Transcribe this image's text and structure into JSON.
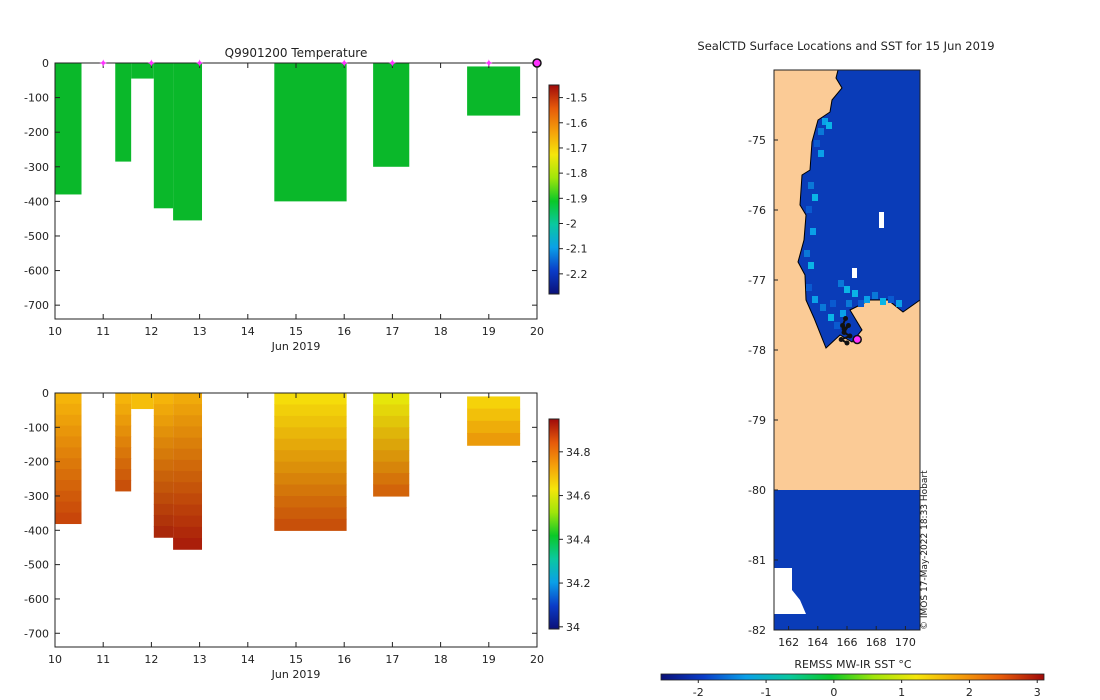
{
  "colors": {
    "temp_fill": "#0ab82a",
    "land": "#fbcb96",
    "ocean": "#0a3cb8",
    "track": "#111111",
    "marker": "#ff33ff",
    "axis": "#222222"
  },
  "chart_data": [
    {
      "type": "bar",
      "name": "temperature-section",
      "title": "Q9901200  Temperature",
      "xlabel": "Jun 2019",
      "xlim": [
        10,
        20
      ],
      "ylim": [
        -740,
        0
      ],
      "x_ticks": [
        10,
        11,
        12,
        13,
        14,
        15,
        16,
        17,
        18,
        19,
        20
      ],
      "y_ticks": [
        0,
        -100,
        -200,
        -300,
        -400,
        -500,
        -600,
        -700
      ],
      "profiles": [
        {
          "x0": 10.0,
          "x1": 10.55,
          "depth": -380
        },
        {
          "x0": 11.25,
          "x1": 11.58,
          "depth": -285
        },
        {
          "x0": 11.58,
          "x1": 12.05,
          "top": -45,
          "depth": 0
        },
        {
          "x0": 12.05,
          "x1": 12.45,
          "depth": -420
        },
        {
          "x0": 12.45,
          "x1": 13.05,
          "depth": -455
        },
        {
          "x0": 14.55,
          "x1": 16.05,
          "depth": -400
        },
        {
          "x0": 16.6,
          "x1": 17.35,
          "depth": -300
        },
        {
          "x0": 18.55,
          "x1": 19.65,
          "top": -10,
          "depth": -152
        }
      ],
      "markers_x": [
        11,
        12,
        13,
        16,
        17,
        19
      ],
      "end_marker_x": 20,
      "colorbar": {
        "ticks": [
          "-1.5",
          "-1.6",
          "-1.7",
          "-1.8",
          "-1.9",
          "-2",
          "-2.1",
          "-2.2"
        ],
        "range": [
          -2.28,
          -1.45
        ],
        "colors": [
          "#0a1078",
          "#0a3cc8",
          "#0aa0e8",
          "#0ac8a0",
          "#0ac828",
          "#a0e60a",
          "#f5e60a",
          "#f5a00a",
          "#e65a0a",
          "#a00a0a"
        ]
      }
    },
    {
      "type": "bar",
      "name": "salinity-section",
      "title": "",
      "xlabel": "Jun 2019",
      "xlim": [
        10,
        20
      ],
      "ylim": [
        -740,
        0
      ],
      "x_ticks": [
        10,
        11,
        12,
        13,
        14,
        15,
        16,
        17,
        18,
        19,
        20
      ],
      "y_ticks": [
        0,
        -100,
        -200,
        -300,
        -400,
        -500,
        -600,
        -700
      ],
      "profiles": [
        {
          "x0": 10.0,
          "x1": 10.55,
          "depth": -380,
          "c_top": "#f5b40a",
          "c_bot": "#c8460a"
        },
        {
          "x0": 11.25,
          "x1": 11.58,
          "depth": -285,
          "c_top": "#f5b40a",
          "c_bot": "#c8500a"
        },
        {
          "x0": 11.58,
          "x1": 12.05,
          "top": -45,
          "depth": 0,
          "c_top": "#f5be0a",
          "c_bot": "#f0aa0a"
        },
        {
          "x0": 12.05,
          "x1": 12.45,
          "depth": -420,
          "c_top": "#f5b40a",
          "c_bot": "#aa280a"
        },
        {
          "x0": 12.45,
          "x1": 13.05,
          "depth": -455,
          "c_top": "#f0aa0a",
          "c_bot": "#aa1e0a"
        },
        {
          "x0": 14.55,
          "x1": 16.05,
          "depth": -400,
          "c_top": "#f5dc0a",
          "c_bot": "#c8500a"
        },
        {
          "x0": 16.6,
          "x1": 17.35,
          "depth": -300,
          "c_top": "#e6e60a",
          "c_bot": "#d2640a"
        },
        {
          "x0": 18.55,
          "x1": 19.65,
          "top": -10,
          "depth": -152,
          "c_top": "#f5d20a",
          "c_bot": "#eb9b0a"
        }
      ],
      "colorbar": {
        "ticks": [
          "34.8",
          "34.6",
          "34.4",
          "34.2",
          "34"
        ],
        "range": [
          33.99,
          34.95
        ],
        "colors": [
          "#0a1078",
          "#0a3cc8",
          "#0aa0e8",
          "#0ac8a0",
          "#0ac828",
          "#a0e60a",
          "#f5e60a",
          "#f5a00a",
          "#e65a0a",
          "#a00a0a"
        ]
      }
    },
    {
      "type": "heatmap",
      "name": "sst-map",
      "title": "SealCTD Surface Locations and SST for 15 Jun 2019",
      "xlim": [
        161,
        171
      ],
      "ylim": [
        -82,
        -74
      ],
      "x_ticks": [
        162,
        164,
        166,
        168,
        170
      ],
      "y_ticks": [
        -75,
        -76,
        -77,
        -78,
        -79,
        -80,
        -81,
        -82
      ],
      "land_color_note": "land",
      "colorbar": {
        "label": "REMSS MW-IR SST °C",
        "ticks": [
          "-2",
          "-1",
          "0",
          "1",
          "2",
          "3"
        ],
        "tick_values": [
          -2,
          -1,
          0,
          1,
          2,
          3
        ],
        "range": [
          -2.55,
          3.1
        ],
        "colors": [
          "#0a1078",
          "#0a3cc8",
          "#0aa0e8",
          "#0ac8a0",
          "#0ac828",
          "#a0e60a",
          "#f5e60a",
          "#f5a00a",
          "#e65a0a",
          "#a00a0a"
        ]
      },
      "track_points": [
        [
          165.9,
          -77.55
        ],
        [
          165.7,
          -77.65
        ],
        [
          165.8,
          -77.7
        ],
        [
          166.1,
          -77.65
        ],
        [
          165.8,
          -77.75
        ],
        [
          166.2,
          -77.8
        ],
        [
          165.6,
          -77.85
        ],
        [
          166.0,
          -77.9
        ]
      ],
      "end_point": [
        166.7,
        -77.85
      ]
    }
  ],
  "watermark": "© IMOS 17-May-2022 18:33 Hobart"
}
